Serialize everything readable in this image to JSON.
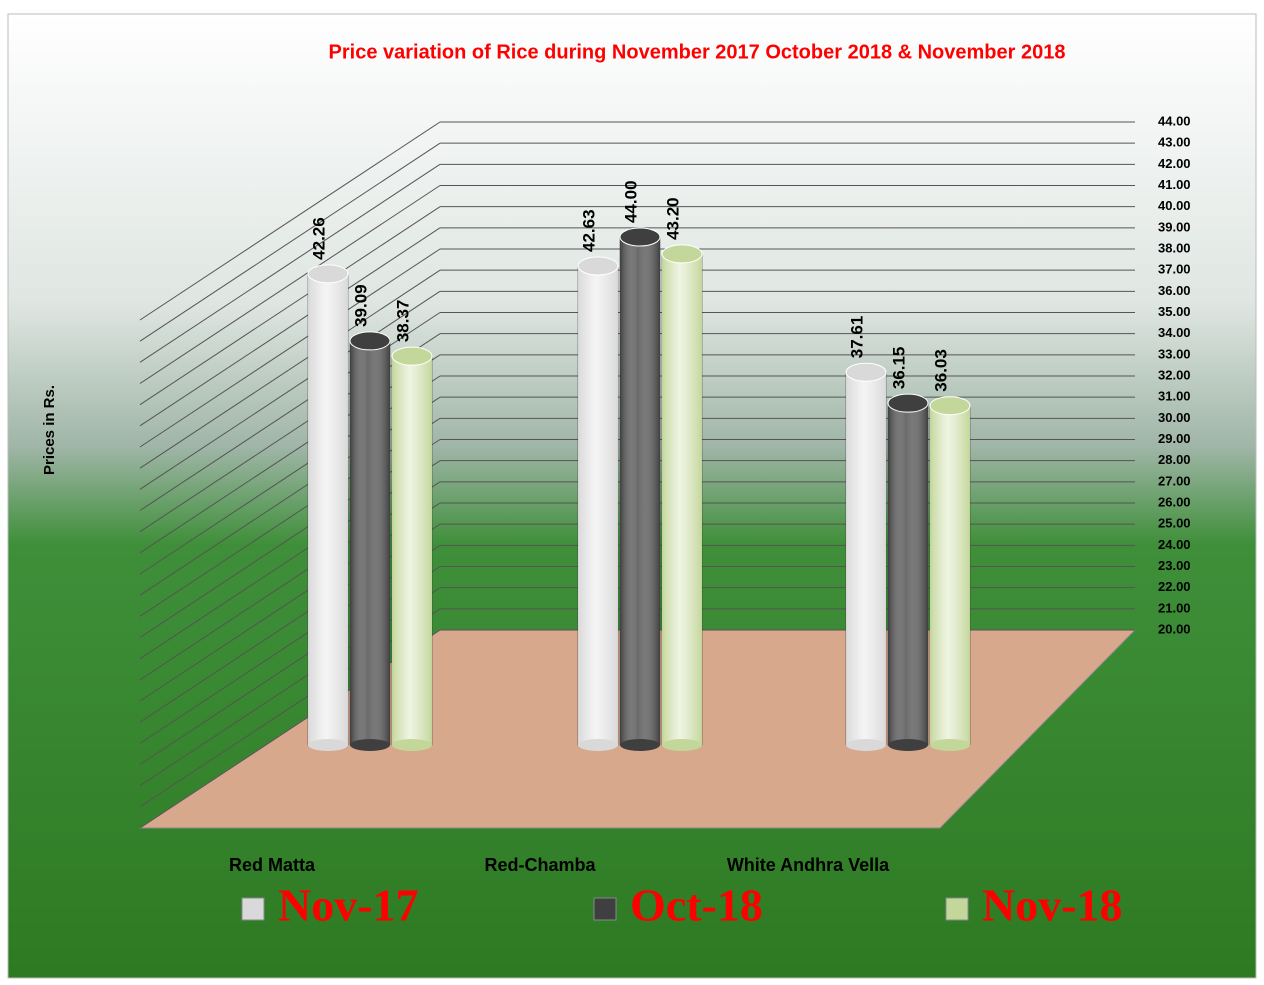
{
  "chart_data": {
    "type": "bar3d",
    "title": "Price variation of Rice during  November  2017  October   2018 &  November  2018",
    "y_label": "Prices in Rs.",
    "categories": [
      "Red Matta",
      "Red-Chamba",
      "White Andhra Vella"
    ],
    "series": [
      {
        "name": "Nov-17",
        "color": "#d9d9d9",
        "values": [
          42.26,
          42.63,
          37.61
        ],
        "value_labels": [
          "42.26",
          "42.63",
          "37.61"
        ]
      },
      {
        "name": "Oct-18",
        "color": "#3f3f3f",
        "values": [
          39.09,
          44,
          36.15
        ],
        "value_labels": [
          "39.09",
          "44.00",
          "36.15"
        ]
      },
      {
        "name": "Nov-18",
        "color": "#c4d79b",
        "values": [
          38.37,
          43.2,
          36.03
        ],
        "value_labels": [
          "38.37",
          "43.20",
          "36.03"
        ]
      }
    ],
    "ylim": [
      20,
      44
    ],
    "yticks": [
      {
        "value": 20,
        "label": "20.00"
      },
      {
        "value": 21,
        "label": "21.00"
      },
      {
        "value": 22,
        "label": "22.00"
      },
      {
        "value": 23,
        "label": "23.00"
      },
      {
        "value": 24,
        "label": "24.00"
      },
      {
        "value": 25,
        "label": "25.00"
      },
      {
        "value": 26,
        "label": "26.00"
      },
      {
        "value": 27,
        "label": "27.00"
      },
      {
        "value": 28,
        "label": "28.00"
      },
      {
        "value": 29,
        "label": "29.00"
      },
      {
        "value": 30,
        "label": "30.00"
      },
      {
        "value": 31,
        "label": "31.00"
      },
      {
        "value": 32,
        "label": "32.00"
      },
      {
        "value": 33,
        "label": "33.00"
      },
      {
        "value": 34,
        "label": "34.00"
      },
      {
        "value": 35,
        "label": "35.00"
      },
      {
        "value": 36,
        "label": "36.00"
      },
      {
        "value": 37,
        "label": "37.00"
      },
      {
        "value": 38,
        "label": "38.00"
      },
      {
        "value": 39,
        "label": "39.00"
      },
      {
        "value": 40,
        "label": "40.00"
      },
      {
        "value": 41,
        "label": "41.00"
      },
      {
        "value": 42,
        "label": "42.00"
      },
      {
        "value": 43,
        "label": "43.00"
      },
      {
        "value": 44,
        "label": "44.00"
      }
    ],
    "grid": true,
    "legend": "bottom"
  }
}
